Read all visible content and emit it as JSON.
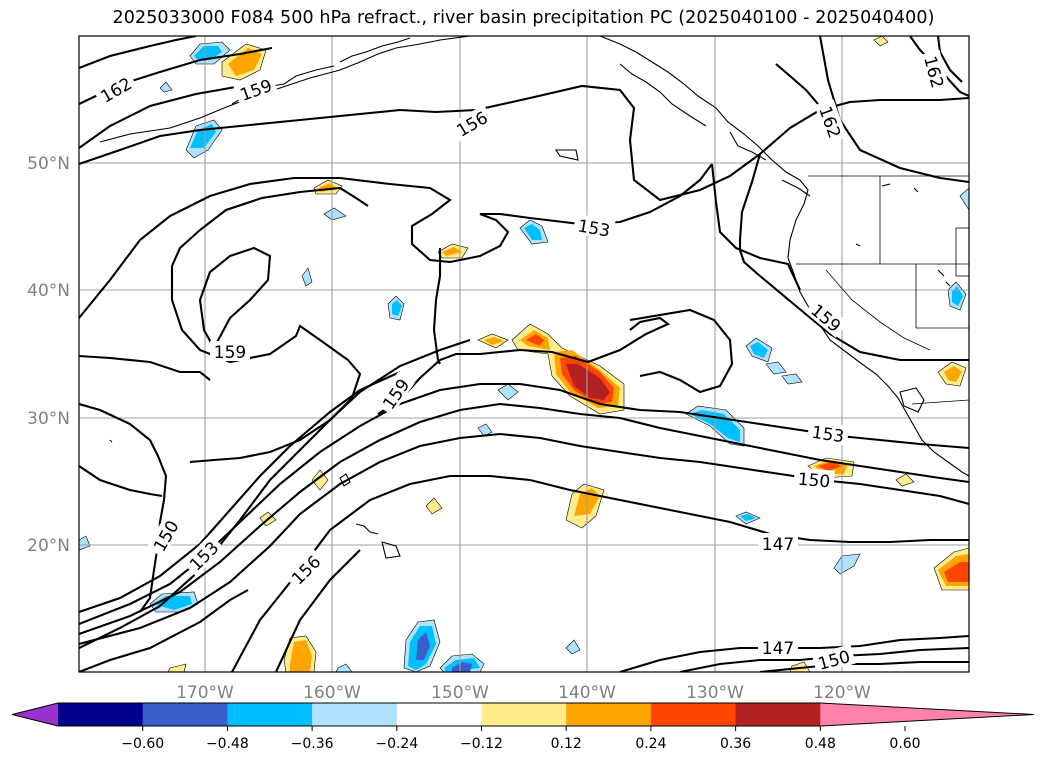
{
  "title": "2025033000 F084 500 hPa refract., river basin precipitation PC (2025040100 - 2025040400)",
  "lat_ticks": [
    "50°N",
    "40°N",
    "30°N",
    "20°N"
  ],
  "lon_ticks": [
    "170°W",
    "160°W",
    "150°W",
    "140°W",
    "130°W",
    "120°W"
  ],
  "contour_labels": [
    "162",
    "159",
    "156",
    "153",
    "150",
    "147"
  ],
  "colorbar": {
    "ticks": [
      "−0.60",
      "−0.48",
      "−0.36",
      "−0.24",
      "−0.12",
      "0.12",
      "0.24",
      "0.36",
      "0.48",
      "0.60"
    ],
    "colors": [
      "#9932cc",
      "#00008b",
      "#3a5fcd",
      "#00bfff",
      "#b0e2ff",
      "#ffffff",
      "#ffec8b",
      "#ffa500",
      "#ff4500",
      "#b22222",
      "#ff82ab"
    ]
  },
  "colors": {
    "contour": "#000000",
    "grid": "#a0a0a0",
    "tick_text": "#808080"
  }
}
